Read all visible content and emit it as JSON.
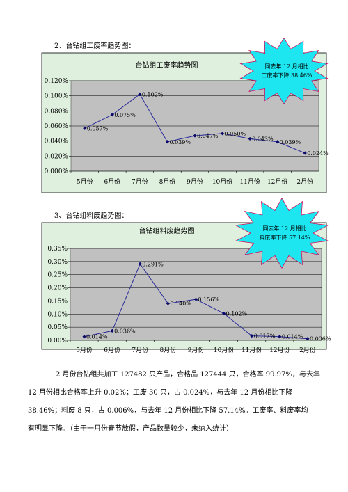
{
  "section1": {
    "heading": "2、台钻组工废率趋势图："
  },
  "section2": {
    "heading": "3、台钻组料废趋势图："
  },
  "chart_data": [
    {
      "type": "line",
      "title": "台钻组工废率趋势图",
      "categories": [
        "5月份",
        "6月份",
        "7月份",
        "8月份",
        "9月份",
        "10月份",
        "11月份",
        "12月份",
        "2月份"
      ],
      "values": [
        0.057,
        0.075,
        0.102,
        0.039,
        0.047,
        0.05,
        0.043,
        0.039,
        0.024
      ],
      "data_labels": [
        "0.057%",
        "0.075%",
        "0.102%",
        "0.039%",
        "0.047%",
        "0.050%",
        "0.043%",
        "0.039%",
        "0.024%"
      ],
      "yticks": [
        "0.000%",
        "0.020%",
        "0.040%",
        "0.060%",
        "0.080%",
        "0.100%",
        "0.120%"
      ],
      "ylim": [
        0,
        0.12
      ],
      "grid": true,
      "callout": {
        "line1": "同去年 12 月相比",
        "line2": "工废率下降 38.46%"
      }
    },
    {
      "type": "line",
      "title": "台钻组料废趋势图",
      "categories": [
        "5月份",
        "6月份",
        "7月份",
        "8月份",
        "9月份",
        "10月份",
        "11月份",
        "12月份",
        "2月份"
      ],
      "values": [
        0.014,
        0.036,
        0.291,
        0.14,
        0.156,
        0.102,
        0.017,
        0.014,
        0.006
      ],
      "data_labels": [
        "0.014%",
        "0.036%",
        "0.291%",
        "0.140%",
        "0.156%",
        "0.102%",
        "0.017%",
        "0.014%",
        "0.006%"
      ],
      "yticks": [
        "0.00%",
        "0.05%",
        "0.10%",
        "0.15%",
        "0.20%",
        "0.25%",
        "0.30%",
        "0.35%"
      ],
      "ylim": [
        0,
        0.35
      ],
      "grid": true,
      "callout": {
        "line1": "同去年 12 月相比",
        "line2": "料废率下降 57.14%"
      }
    }
  ],
  "paragraph": {
    "lines": [
      "2 月份台钻组共加工 127482 只产品，合格品 127444 只，合格率 99.97%，与去年",
      "12 月份相比合格率上升 0.02%；工废 30 只，占 0.024%，与去年 12 月份相比下降",
      "38.46%；料废 8 只，占 0.006%，与去年 12 月份相比下降 57.14%。工废率、料废率均",
      "有明显下降。（由于一月份春节放假，产品数量较少，未纳入统计）"
    ]
  },
  "colors": {
    "outer_bg": "#dff0df",
    "plot_bg": "#c0c0c0",
    "line": "#2b2b9a",
    "marker": "#0a0a6a",
    "callout_fill": "#1ee6f0",
    "callout_stroke": "#d01060"
  }
}
